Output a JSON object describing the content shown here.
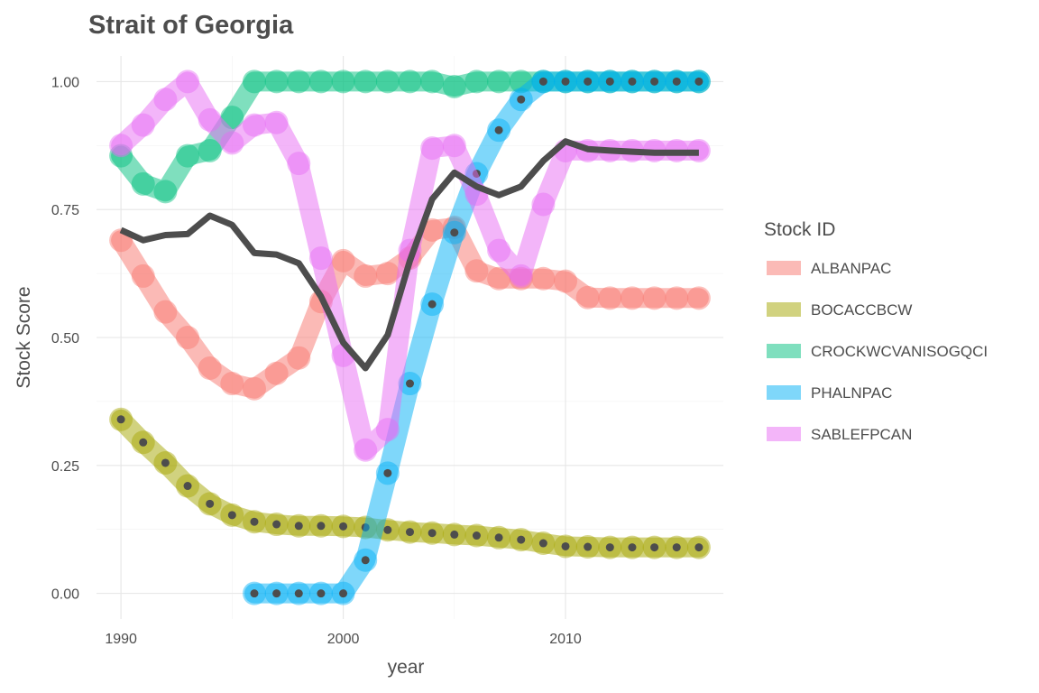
{
  "chart_data": {
    "type": "line",
    "title": "Strait of Georgia",
    "xlabel": "year",
    "ylabel": "Stock Score",
    "xlim": [
      1988.9,
      2017.1
    ],
    "ylim": [
      -0.05,
      1.05
    ],
    "x_ticks": [
      1990,
      2000,
      2010
    ],
    "x_tick_labels": [
      "1990",
      "2000",
      "2010"
    ],
    "y_ticks": [
      0,
      0.25,
      0.5,
      0.75,
      1
    ],
    "y_tick_labels": [
      "0.00",
      "0.25",
      "0.50",
      "0.75",
      "1.00"
    ],
    "grid": true,
    "legend": {
      "title": "Stock ID",
      "placement": "right"
    },
    "series": [
      {
        "name": "ALBANPAC",
        "color": "#F8766D",
        "x": [
          1990,
          1991,
          1992,
          1993,
          1994,
          1995,
          1996,
          1997,
          1998,
          1999,
          2000,
          2001,
          2002,
          2003,
          2004,
          2005,
          2006,
          2007,
          2008,
          2009,
          2010,
          2011,
          2012,
          2013,
          2014,
          2015,
          2016
        ],
        "y": [
          0.69,
          0.62,
          0.55,
          0.5,
          0.44,
          0.41,
          0.4,
          0.43,
          0.46,
          0.57,
          0.65,
          0.62,
          0.625,
          0.655,
          0.71,
          0.715,
          0.63,
          0.615,
          0.615,
          0.615,
          0.61,
          0.578,
          0.577,
          0.577,
          0.577,
          0.577,
          0.577
        ]
      },
      {
        "name": "BOCACCBCW",
        "color": "#A3A500",
        "x": [
          1990,
          1991,
          1992,
          1993,
          1994,
          1995,
          1996,
          1997,
          1998,
          1999,
          2000,
          2001,
          2002,
          2003,
          2004,
          2005,
          2006,
          2007,
          2008,
          2009,
          2010,
          2011,
          2012,
          2013,
          2014,
          2015,
          2016
        ],
        "y": [
          0.34,
          0.295,
          0.255,
          0.21,
          0.175,
          0.153,
          0.14,
          0.135,
          0.132,
          0.132,
          0.131,
          0.129,
          0.124,
          0.12,
          0.118,
          0.115,
          0.113,
          0.109,
          0.105,
          0.098,
          0.092,
          0.091,
          0.09,
          0.09,
          0.09,
          0.09,
          0.09
        ]
      },
      {
        "name": "CROCKWCVANISOGQCI",
        "color": "#00BF7D",
        "x": [
          1990,
          1991,
          1992,
          1993,
          1994,
          1995,
          1996,
          1997,
          1998,
          1999,
          2000,
          2001,
          2002,
          2003,
          2004,
          2005,
          2006,
          2007,
          2008,
          2009,
          2010,
          2011,
          2012,
          2013,
          2014,
          2015,
          2016
        ],
        "y": [
          0.855,
          0.8,
          0.785,
          0.855,
          0.865,
          0.93,
          1.0,
          1.0,
          1.0,
          1.0,
          1.0,
          1.0,
          1.0,
          1.0,
          1.0,
          0.99,
          1.0,
          1.0,
          1.0,
          1.0,
          1.0,
          1.0,
          1.0,
          1.0,
          1.0,
          1.0,
          1.0
        ]
      },
      {
        "name": "PHALNPAC",
        "color": "#00B0F6",
        "x": [
          1996,
          1997,
          1998,
          1999,
          2000,
          2001,
          2002,
          2003,
          2004,
          2005,
          2006,
          2007,
          2008,
          2009,
          2010,
          2011,
          2012,
          2013,
          2014,
          2015,
          2016
        ],
        "y": [
          0.0,
          0.0,
          0.0,
          0.0,
          0.0,
          0.065,
          0.235,
          0.41,
          0.565,
          0.705,
          0.82,
          0.905,
          0.965,
          1.0,
          1.0,
          1.0,
          1.0,
          1.0,
          1.0,
          1.0,
          1.0
        ]
      },
      {
        "name": "SABLEFPCAN",
        "color": "#E76BF3",
        "x": [
          1990,
          1991,
          1992,
          1993,
          1994,
          1995,
          1996,
          1997,
          1998,
          1999,
          2000,
          2001,
          2002,
          2003,
          2004,
          2005,
          2006,
          2007,
          2008,
          2009,
          2010,
          2011,
          2012,
          2013,
          2014,
          2015,
          2016
        ],
        "y": [
          0.875,
          0.915,
          0.965,
          1.0,
          0.925,
          0.88,
          0.915,
          0.92,
          0.84,
          0.655,
          0.465,
          0.28,
          0.32,
          0.67,
          0.87,
          0.875,
          0.78,
          0.67,
          0.62,
          0.76,
          0.865,
          0.865,
          0.865,
          0.865,
          0.865,
          0.865,
          0.865
        ]
      }
    ],
    "mean_line": {
      "color": "#4d4d4d",
      "x": [
        1990,
        1991,
        1992,
        1993,
        1994,
        1995,
        1996,
        1997,
        1998,
        1999,
        2000,
        2001,
        2002,
        2003,
        2004,
        2005,
        2006,
        2007,
        2008,
        2009,
        2010,
        2011,
        2012,
        2013,
        2014,
        2015,
        2016
      ],
      "y": [
        0.71,
        0.69,
        0.7,
        0.702,
        0.738,
        0.72,
        0.665,
        0.662,
        0.645,
        0.58,
        0.49,
        0.44,
        0.505,
        0.65,
        0.77,
        0.822,
        0.795,
        0.778,
        0.795,
        0.845,
        0.883,
        0.868,
        0.865,
        0.863,
        0.861,
        0.861,
        0.861
      ]
    }
  }
}
